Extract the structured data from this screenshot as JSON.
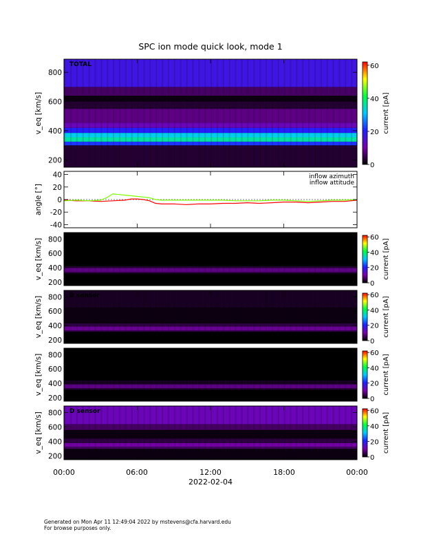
{
  "title": "SPC ion mode quick look, mode 1",
  "x_ticks": [
    "00:00",
    "06:00",
    "12:00",
    "18:00",
    "00:00"
  ],
  "x_label": "2022-02-04",
  "footer": {
    "line1": "Generated on Mon Apr 11 12:49:04 2022 by mstevens@cfa.harvard.edu",
    "line2": "For browse purposes only."
  },
  "colors": {
    "colormap": [
      "#000000",
      "#7800aa",
      "#2020ff",
      "#00c8ff",
      "#00ff40",
      "#ffff00",
      "#ff0000"
    ]
  },
  "chart_data": [
    {
      "type": "heatmap",
      "label": "TOTAL",
      "ylabel": "v_eq [km/s]",
      "yticks": [
        200,
        400,
        600,
        800
      ],
      "ylim": [
        150,
        890
      ],
      "xlim": [
        0,
        24
      ],
      "bands": [
        {
          "vmin": 150,
          "vmax": 300,
          "current": 3
        },
        {
          "vmin": 300,
          "vmax": 325,
          "current": 22
        },
        {
          "vmin": 325,
          "vmax": 355,
          "current": 36
        },
        {
          "vmin": 355,
          "vmax": 385,
          "current": 32
        },
        {
          "vmin": 385,
          "vmax": 420,
          "current": 20
        },
        {
          "vmin": 420,
          "vmax": 455,
          "current": 12
        },
        {
          "vmin": 455,
          "vmax": 550,
          "current": 8
        },
        {
          "vmin": 550,
          "vmax": 600,
          "current": 3
        },
        {
          "vmin": 600,
          "vmax": 640,
          "current": 1
        },
        {
          "vmin": 640,
          "vmax": 700,
          "current": 6
        },
        {
          "vmin": 700,
          "vmax": 890,
          "current": 17
        }
      ],
      "colorbar": {
        "label": "current [pA]",
        "ticks": [
          0,
          20,
          40,
          60
        ],
        "range": [
          0,
          62
        ]
      }
    },
    {
      "type": "line",
      "ylabel": "angle [°]",
      "yticks": [
        -40,
        -20,
        0,
        20,
        40
      ],
      "ylim": [
        -45,
        45
      ],
      "xlim": [
        0,
        24
      ],
      "series": [
        {
          "name": "inflow azimuth",
          "color": "#ff0000",
          "x": [
            0,
            1,
            2,
            3,
            4,
            5,
            5.5,
            6,
            6.5,
            7,
            7.5,
            8,
            9,
            10,
            11,
            12,
            13,
            14,
            15,
            16,
            17,
            18,
            19,
            20,
            21,
            22,
            23,
            24
          ],
          "y": [
            -1,
            -2,
            -2,
            -3,
            -2,
            -1,
            1,
            1,
            0,
            -2,
            -6,
            -7,
            -7,
            -8,
            -7,
            -7,
            -6,
            -6,
            -5,
            -6,
            -5,
            -4,
            -4,
            -5,
            -4,
            -3,
            -3,
            -1
          ]
        },
        {
          "name": "inflow attitude",
          "color": "#7fff00",
          "x": [
            0,
            1,
            2,
            3,
            3.5,
            4,
            4.5,
            5,
            5.5,
            6,
            6.5,
            7,
            7.5,
            8,
            9,
            10,
            11,
            12,
            13,
            14,
            15,
            16,
            17,
            18,
            19,
            20,
            21,
            22,
            23,
            24
          ],
          "y": [
            -2,
            -1,
            -2,
            -1,
            3,
            9,
            8,
            7,
            6,
            5,
            4,
            3,
            0,
            -1,
            -1,
            -1,
            -1,
            -1,
            -1,
            -2,
            -2,
            -2,
            -1,
            -1,
            -2,
            -3,
            -2,
            -1,
            -1,
            0
          ]
        }
      ]
    },
    {
      "type": "heatmap",
      "label": "",
      "ylabel": "v_eq [km/s]",
      "yticks": [
        200,
        400,
        600,
        800
      ],
      "ylim": [
        150,
        890
      ],
      "xlim": [
        0,
        24
      ],
      "bands": [
        {
          "vmin": 150,
          "vmax": 320,
          "current": 0
        },
        {
          "vmin": 320,
          "vmax": 340,
          "current": 4
        },
        {
          "vmin": 340,
          "vmax": 395,
          "current": 8
        },
        {
          "vmin": 395,
          "vmax": 420,
          "current": 3
        },
        {
          "vmin": 420,
          "vmax": 890,
          "current": 0
        }
      ],
      "colorbar": {
        "label": "current [pA]",
        "ticks": [
          0,
          20,
          40,
          60
        ],
        "range": [
          0,
          62
        ]
      }
    },
    {
      "type": "heatmap",
      "label": "B sensor",
      "ylabel": "v_eq [km/s]",
      "yticks": [
        200,
        400,
        600,
        800
      ],
      "ylim": [
        150,
        890
      ],
      "xlim": [
        0,
        24
      ],
      "bands": [
        {
          "vmin": 150,
          "vmax": 310,
          "current": 0
        },
        {
          "vmin": 310,
          "vmax": 330,
          "current": 4
        },
        {
          "vmin": 330,
          "vmax": 385,
          "current": 9
        },
        {
          "vmin": 385,
          "vmax": 430,
          "current": 4
        },
        {
          "vmin": 430,
          "vmax": 650,
          "current": 1
        },
        {
          "vmin": 650,
          "vmax": 890,
          "current": 2
        }
      ],
      "colorbar": {
        "label": "current [pA]",
        "ticks": [
          0,
          20,
          40,
          60
        ],
        "range": [
          0,
          62
        ]
      }
    },
    {
      "type": "heatmap",
      "label": "",
      "ylabel": "v_eq [km/s]",
      "yticks": [
        200,
        400,
        600,
        800
      ],
      "ylim": [
        150,
        890
      ],
      "xlim": [
        0,
        24
      ],
      "bands": [
        {
          "vmin": 150,
          "vmax": 310,
          "current": 0
        },
        {
          "vmin": 310,
          "vmax": 330,
          "current": 3
        },
        {
          "vmin": 330,
          "vmax": 385,
          "current": 8
        },
        {
          "vmin": 385,
          "vmax": 440,
          "current": 2
        },
        {
          "vmin": 440,
          "vmax": 890,
          "current": 0
        }
      ],
      "colorbar": {
        "label": "current [pA]",
        "ticks": [
          0,
          20,
          40,
          60
        ],
        "range": [
          0,
          62
        ]
      }
    },
    {
      "type": "heatmap",
      "label": "D sensor",
      "ylabel": "v_eq [km/s]",
      "yticks": [
        200,
        400,
        600,
        800
      ],
      "ylim": [
        150,
        890
      ],
      "xlim": [
        0,
        24
      ],
      "bands": [
        {
          "vmin": 150,
          "vmax": 300,
          "current": 1
        },
        {
          "vmin": 300,
          "vmax": 330,
          "current": 6
        },
        {
          "vmin": 330,
          "vmax": 380,
          "current": 10
        },
        {
          "vmin": 380,
          "vmax": 440,
          "current": 4
        },
        {
          "vmin": 440,
          "vmax": 560,
          "current": 1
        },
        {
          "vmin": 560,
          "vmax": 640,
          "current": 6
        },
        {
          "vmin": 640,
          "vmax": 890,
          "current": 12
        }
      ],
      "colorbar": {
        "label": "current [pA]",
        "ticks": [
          0,
          20,
          40,
          60
        ],
        "range": [
          0,
          62
        ]
      }
    }
  ]
}
